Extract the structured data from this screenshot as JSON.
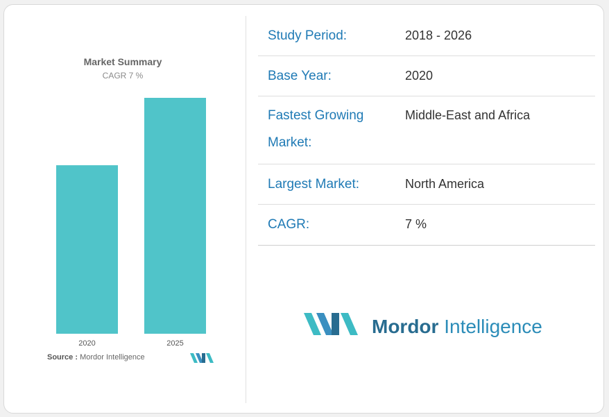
{
  "chart_data": {
    "type": "bar",
    "title": "Market Summary",
    "subtitle": "CAGR 7 %",
    "categories": [
      "2020",
      "2025"
    ],
    "values": [
      100,
      140
    ],
    "ylim": [
      0,
      140
    ],
    "grid": false,
    "colors": {
      "bar": "#50c4c9"
    }
  },
  "source": {
    "label": "Source :",
    "text": "Mordor Intelligence"
  },
  "info": [
    {
      "label": "Study Period:",
      "value": "2018 - 2026"
    },
    {
      "label": "Base Year:",
      "value": "2020"
    },
    {
      "label": "Fastest Growing Market:",
      "value": "Middle-East and Africa"
    },
    {
      "label": "Largest Market:",
      "value": "North America"
    },
    {
      "label": "CAGR:",
      "value": "7 %"
    }
  ],
  "brand": {
    "word1": "Mordor",
    "word2": " Intelligence"
  },
  "colors": {
    "label": "#1f7ab5",
    "brand_teal": "#3dbbc4",
    "brand_blue": "#286c90"
  }
}
